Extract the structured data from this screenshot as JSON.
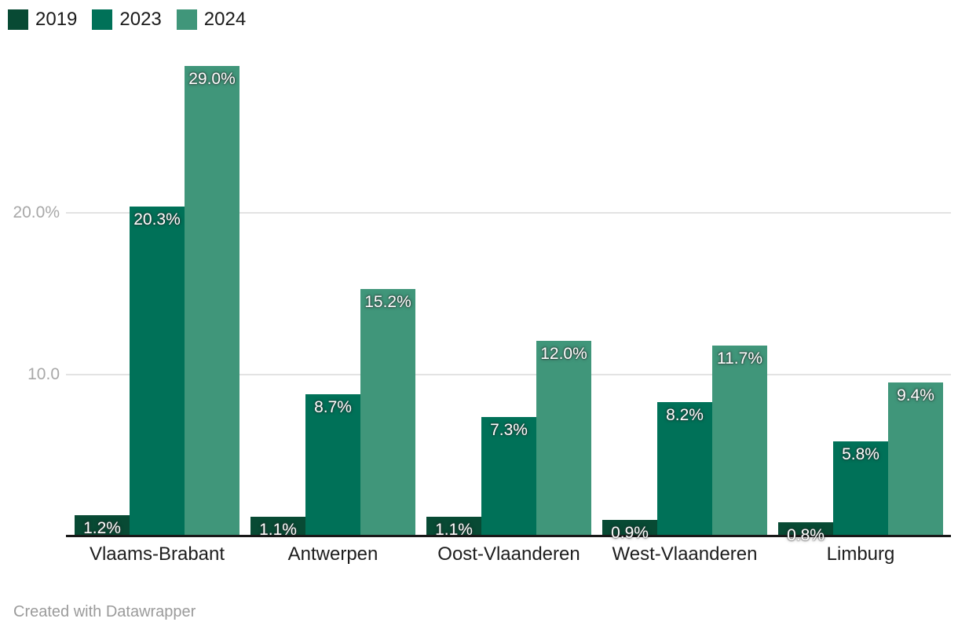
{
  "legend": {
    "items": [
      {
        "label": "2019",
        "color": "#084A34"
      },
      {
        "label": "2023",
        "color": "#007158"
      },
      {
        "label": "2024",
        "color": "#40967A"
      }
    ]
  },
  "footer": {
    "text": "Created with Datawrapper"
  },
  "chart_data": {
    "type": "bar",
    "title": "",
    "categories": [
      "Vlaams-Brabant",
      "Antwerpen",
      "Oost-Vlaanderen",
      "West-Vlaanderen",
      "Limburg"
    ],
    "series": [
      {
        "name": "2019",
        "color": "#084A34",
        "values": [
          1.2,
          1.1,
          1.1,
          0.9,
          0.8
        ],
        "value_labels": [
          "1.2%",
          "1.1%",
          "1.1%",
          "0.9%",
          "0.8%"
        ]
      },
      {
        "name": "2023",
        "color": "#007158",
        "values": [
          20.3,
          8.7,
          7.3,
          8.2,
          5.8
        ],
        "value_labels": [
          "20.3%",
          "8.7%",
          "7.3%",
          "8.2%",
          "5.8%"
        ]
      },
      {
        "name": "2024",
        "color": "#40967A",
        "values": [
          29.0,
          15.2,
          12.0,
          11.7,
          9.4
        ],
        "value_labels": [
          "29.0%",
          "15.2%",
          "12.0%",
          "11.7%",
          "9.4%"
        ]
      }
    ],
    "xlabel": "",
    "ylabel": "",
    "ylim": [
      0,
      30
    ],
    "y_ticks": [
      {
        "value": 10,
        "label": "10.0"
      },
      {
        "value": 20,
        "label": "20.0%"
      }
    ],
    "grid": "horizontal",
    "legend_position": "top-left",
    "value_labels_position": "inside-top"
  }
}
